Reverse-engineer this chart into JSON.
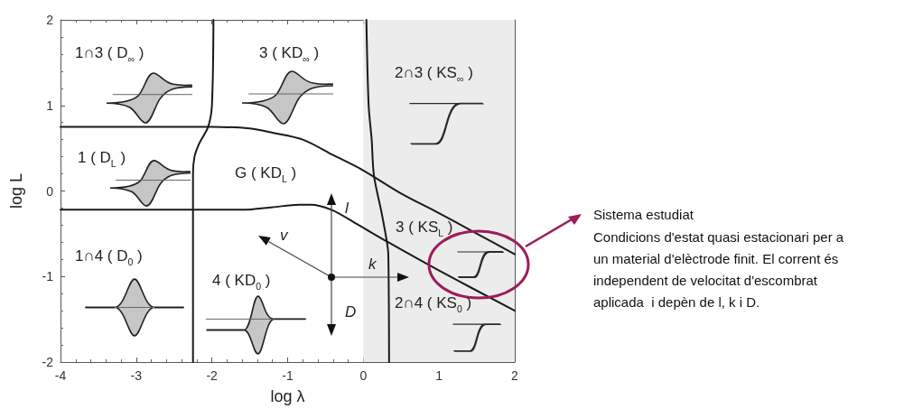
{
  "chart_data": {
    "type": "line",
    "xlabel": "log λ",
    "ylabel": "log L",
    "xlim": [
      -4,
      2
    ],
    "ylim": [
      -2,
      2
    ],
    "xticks": [
      -4,
      -3,
      -2,
      -1,
      0,
      1,
      2
    ],
    "yticks": [
      -2,
      -1,
      0,
      1,
      2
    ],
    "grid": false,
    "marker": "none",
    "line_style": "solid",
    "series": [
      {
        "color": "#1a1a1a",
        "x": [
          -4,
          -2,
          -1.5,
          -1.2,
          -0.8,
          -0.4,
          0,
          0.5,
          1,
          1.5,
          2
        ],
        "values": [
          0.75,
          0.75,
          0.73,
          0.68,
          0.6,
          0.42,
          0.24,
          -0.03,
          -0.26,
          -0.5,
          -0.74
        ]
      },
      {
        "color": "#1a1a1a",
        "x": [
          -4,
          -1.6,
          -1.2,
          -0.85,
          -0.7,
          -0.42,
          -0.06,
          0.31,
          1,
          2
        ],
        "values": [
          -0.22,
          -0.22,
          -0.19,
          -0.16,
          -0.16,
          -0.22,
          -0.4,
          -0.59,
          -0.93,
          -1.4
        ]
      },
      {
        "color": "#1a1a1a",
        "x": [
          -1.98,
          -2.0,
          -2.05,
          -2.17,
          -2.23,
          -2.25,
          -2.25
        ],
        "values": [
          2,
          1,
          0.75,
          0.55,
          0.4,
          0.2,
          -2
        ]
      },
      {
        "color": "#1a1a1a",
        "x": [
          0.04,
          0.07,
          0.11,
          0.14,
          0.24,
          0.31,
          0.33,
          0.34
        ],
        "values": [
          2,
          1,
          0.6,
          0.18,
          -0.25,
          -0.59,
          -0.75,
          -2
        ]
      }
    ],
    "bands": [
      {
        "axis": "x",
        "from": 0,
        "to": 2,
        "color": "#ececec"
      }
    ],
    "annotations": [
      "1∩3 ( D$_{∞}$ )",
      "3 ( KD$_{∞}$ )",
      "2∩3 ( KS$_{∞}$ )",
      "1 ( D$_{L}$ )",
      "G ( KD$_{L}$ )",
      "3 ( KS$_{L}$ )",
      "1∩4 ( D$_{0}$ )",
      "4 ( KD$_{0}$ )",
      "2∩4 ( KS$_{0}$ )",
      "l",
      "v",
      "k",
      "D",
      "Sistema estudiat",
      "Condicions d'estat quasi estacionari per a un material d'elèctrode finit. El corrent és independent de velocitat d'escombrat aplicada  i depèn de l, k i D."
    ]
  }
}
